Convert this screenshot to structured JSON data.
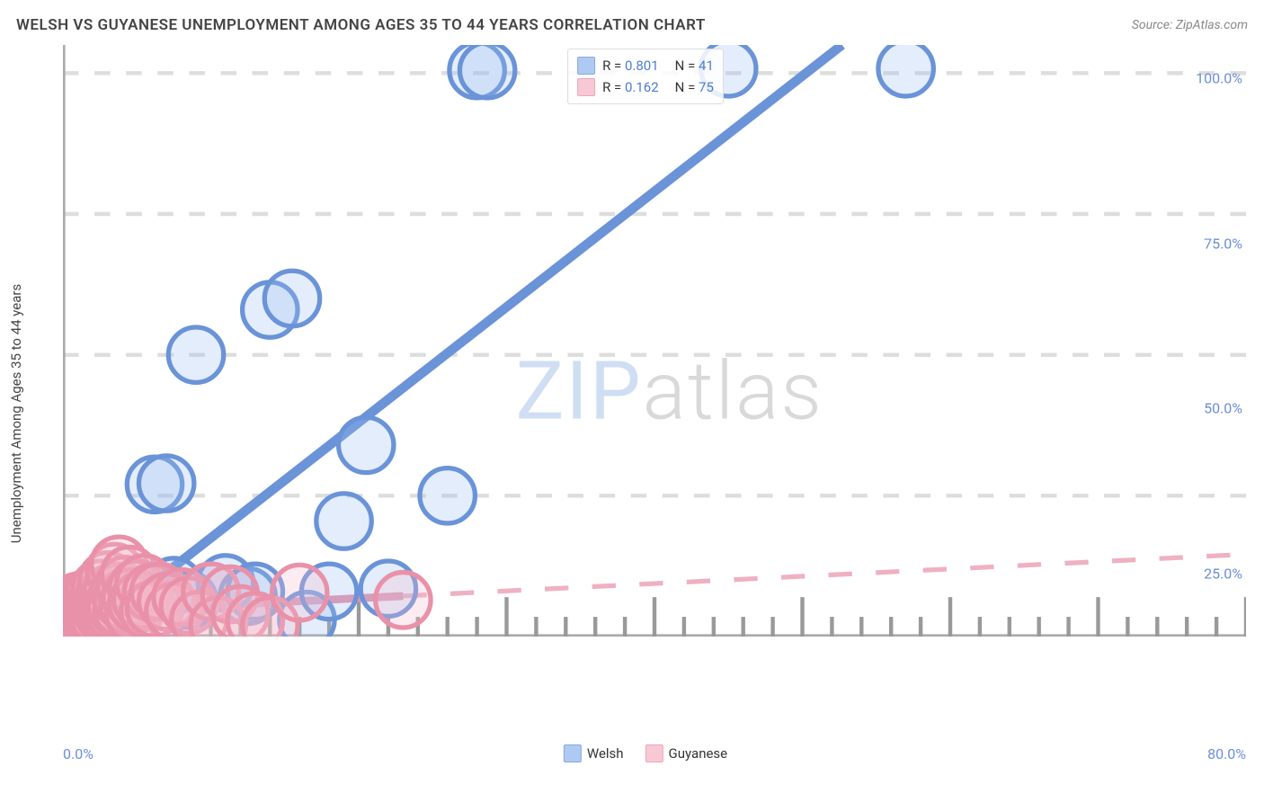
{
  "header": {
    "title": "WELSH VS GUYANESE UNEMPLOYMENT AMONG AGES 35 TO 44 YEARS CORRELATION CHART",
    "source_prefix": "Source: ",
    "source_name": "ZipAtlas.com"
  },
  "watermark": {
    "part1": "ZIP",
    "part2": "atlas"
  },
  "chart": {
    "type": "scatter",
    "y_axis_label": "Unemployment Among Ages 35 to 44 years",
    "background_color": "#ffffff",
    "axis_line_color": "#aaaaaa",
    "grid_color": "#dddddd",
    "tick_color": "#999999",
    "tick_label_color": "#6a8fd8",
    "xlim": [
      0,
      80
    ],
    "ylim": [
      0,
      105
    ],
    "x_ticks_major": [
      0,
      10,
      20,
      30,
      40,
      50,
      60,
      70,
      80
    ],
    "x_ticks_minor_step": 2,
    "x_tick_labels": [
      {
        "value": 0,
        "label": "0.0%",
        "align": "start"
      },
      {
        "value": 80,
        "label": "80.0%",
        "align": "end"
      }
    ],
    "y_grid": [
      25,
      50,
      75,
      100
    ],
    "y_tick_labels": [
      {
        "value": 25,
        "label": "25.0%"
      },
      {
        "value": 50,
        "label": "50.0%"
      },
      {
        "value": 75,
        "label": "75.0%"
      },
      {
        "value": 100,
        "label": "100.0%"
      }
    ],
    "marker_radius": 7,
    "marker_stroke_width": 1.2,
    "marker_fill_opacity": 0.28,
    "series": [
      {
        "id": "welsh",
        "label": "Welsh",
        "color_stroke": "#6a93d8",
        "color_fill": "#9cbef0",
        "trend": {
          "slope": 2.05,
          "intercept": -3.0,
          "x_data_max": 80,
          "line_width": 2.4
        },
        "R": "0.801",
        "N": "41",
        "points": [
          [
            0.3,
            3.4
          ],
          [
            0.5,
            4.2
          ],
          [
            0.7,
            2.8
          ],
          [
            0.9,
            4.0
          ],
          [
            1.0,
            5.0
          ],
          [
            1.2,
            3.2
          ],
          [
            1.4,
            4.8
          ],
          [
            1.5,
            6.1
          ],
          [
            1.8,
            3.6
          ],
          [
            2.0,
            5.2
          ],
          [
            2.2,
            4.4
          ],
          [
            2.4,
            6.5
          ],
          [
            2.5,
            5.8
          ],
          [
            2.8,
            7.2
          ],
          [
            3.0,
            4.6
          ],
          [
            3.5,
            6.0
          ],
          [
            4.0,
            8.0
          ],
          [
            4.3,
            6.8
          ],
          [
            5.0,
            8.6
          ],
          [
            5.5,
            7.0
          ],
          [
            6.2,
            27.0
          ],
          [
            7.0,
            27.2
          ],
          [
            7.5,
            9.0
          ],
          [
            8.5,
            6.5
          ],
          [
            9.0,
            50.0
          ],
          [
            10.0,
            8.0
          ],
          [
            11.0,
            9.5
          ],
          [
            12.5,
            7.2
          ],
          [
            13.0,
            8.0
          ],
          [
            14.0,
            58.0
          ],
          [
            15.5,
            60.0
          ],
          [
            16.5,
            3.0
          ],
          [
            18.0,
            8.0
          ],
          [
            19.0,
            20.5
          ],
          [
            20.5,
            34.0
          ],
          [
            22.0,
            8.5
          ],
          [
            26.0,
            25.0
          ],
          [
            28.0,
            100.5
          ],
          [
            28.7,
            100.5
          ],
          [
            45.0,
            100.8
          ],
          [
            57.0,
            100.8
          ]
        ]
      },
      {
        "id": "guyanese",
        "label": "Guyanese",
        "color_stroke": "#e991a8",
        "color_fill": "#f5bccb",
        "trend": {
          "slope": 0.13,
          "intercept": 4.2,
          "x_data_max": 23,
          "line_width": 2.0
        },
        "R": "0.162",
        "N": "75",
        "points": [
          [
            0.2,
            3.0
          ],
          [
            0.3,
            4.1
          ],
          [
            0.4,
            3.5
          ],
          [
            0.5,
            5.0
          ],
          [
            0.5,
            2.8
          ],
          [
            0.6,
            4.3
          ],
          [
            0.7,
            3.7
          ],
          [
            0.8,
            5.5
          ],
          [
            0.8,
            2.6
          ],
          [
            0.9,
            4.8
          ],
          [
            1.0,
            3.9
          ],
          [
            1.0,
            6.2
          ],
          [
            1.1,
            4.5
          ],
          [
            1.2,
            3.2
          ],
          [
            1.2,
            5.8
          ],
          [
            1.3,
            4.0
          ],
          [
            1.4,
            6.5
          ],
          [
            1.5,
            3.6
          ],
          [
            1.5,
            5.2
          ],
          [
            1.6,
            4.4
          ],
          [
            1.7,
            6.8
          ],
          [
            1.8,
            3.3
          ],
          [
            1.8,
            5.6
          ],
          [
            1.9,
            4.7
          ],
          [
            2.0,
            7.0
          ],
          [
            2.0,
            3.8
          ],
          [
            2.1,
            5.3
          ],
          [
            2.2,
            4.2
          ],
          [
            2.3,
            6.0
          ],
          [
            2.4,
            3.5
          ],
          [
            2.5,
            5.5
          ],
          [
            2.5,
            8.5
          ],
          [
            2.6,
            4.6
          ],
          [
            2.7,
            6.4
          ],
          [
            2.8,
            3.9
          ],
          [
            2.9,
            5.8
          ],
          [
            3.0,
            4.3
          ],
          [
            3.0,
            10.0
          ],
          [
            3.1,
            6.6
          ],
          [
            3.2,
            5.0
          ],
          [
            3.3,
            7.8
          ],
          [
            3.4,
            4.5
          ],
          [
            3.5,
            11.5
          ],
          [
            3.5,
            6.0
          ],
          [
            3.6,
            5.3
          ],
          [
            3.8,
            8.0
          ],
          [
            3.8,
            12.8
          ],
          [
            4.0,
            4.8
          ],
          [
            4.0,
            6.5
          ],
          [
            4.2,
            9.2
          ],
          [
            4.4,
            5.5
          ],
          [
            4.5,
            11.0
          ],
          [
            4.6,
            7.0
          ],
          [
            4.8,
            4.0
          ],
          [
            5.0,
            8.5
          ],
          [
            5.0,
            5.8
          ],
          [
            5.3,
            6.5
          ],
          [
            5.5,
            9.5
          ],
          [
            5.8,
            4.5
          ],
          [
            6.0,
            7.8
          ],
          [
            6.2,
            5.0
          ],
          [
            6.5,
            8.0
          ],
          [
            7.0,
            6.2
          ],
          [
            7.5,
            4.5
          ],
          [
            8.0,
            7.0
          ],
          [
            8.5,
            5.5
          ],
          [
            9.2,
            3.0
          ],
          [
            10.0,
            8.0
          ],
          [
            10.5,
            2.0
          ],
          [
            11.3,
            7.5
          ],
          [
            12.0,
            4.0
          ],
          [
            13.0,
            2.8
          ],
          [
            14.0,
            2.0
          ],
          [
            16.0,
            7.8
          ],
          [
            23.0,
            6.5
          ]
        ]
      }
    ],
    "legend_top": {
      "R_label": "R =",
      "N_label": "N ="
    },
    "legend_bottom_order": [
      "welsh",
      "guyanese"
    ]
  }
}
